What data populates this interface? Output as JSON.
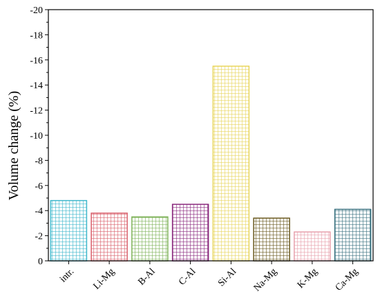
{
  "chart_data": {
    "type": "bar",
    "categories": [
      "intr.",
      "Li-Mg",
      "B-Al",
      "C-Al",
      "Si-Al",
      "Na-Mg",
      "K-Mg",
      "Ca-Mg"
    ],
    "values": [
      -4.8,
      -3.8,
      -3.5,
      -4.5,
      -15.5,
      -3.4,
      -2.3,
      -4.1
    ],
    "colors": [
      "#3fb8cc",
      "#d9606c",
      "#7fb35a",
      "#8a2a7e",
      "#e8d55a",
      "#6b5a20",
      "#e8a0ac",
      "#3a7280"
    ],
    "xlabel": "",
    "ylabel": "Volume change (%)",
    "ylim": [
      0,
      -20
    ],
    "yticks": [
      0,
      -2,
      -4,
      -6,
      -8,
      -10,
      -12,
      -14,
      -16,
      -18,
      -20
    ],
    "ytick_labels": [
      "0",
      "-2",
      "-4",
      "-6",
      "-8",
      "-10",
      "-12",
      "-14",
      "-16",
      "-18",
      "-20"
    ],
    "y_inverted": true,
    "bar_pattern": "grid",
    "grid": false,
    "legend": "none"
  }
}
